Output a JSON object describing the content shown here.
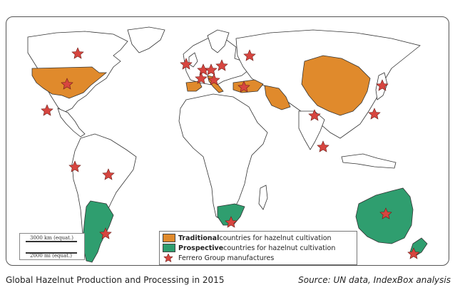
{
  "legend": {
    "traditional_bold": "Traditional",
    "traditional_rest": " countries for hazelnut cultivation",
    "prospective_bold": "Prospective",
    "prospective_rest": " countries for hazelnut cultivation",
    "ferrero": "Ferrero Group manufactures"
  },
  "scale": {
    "km_label": "3000 km (equat.)",
    "mi_label": "2000 mi (equat.)"
  },
  "caption": "Global Hazelnut Production and Processing in 2015",
  "source": "Source: UN data, IndexBox analysis",
  "colors": {
    "traditional": "#e08a2c",
    "prospective": "#2f9e6f",
    "ferrero_star": "#d7453f"
  }
}
